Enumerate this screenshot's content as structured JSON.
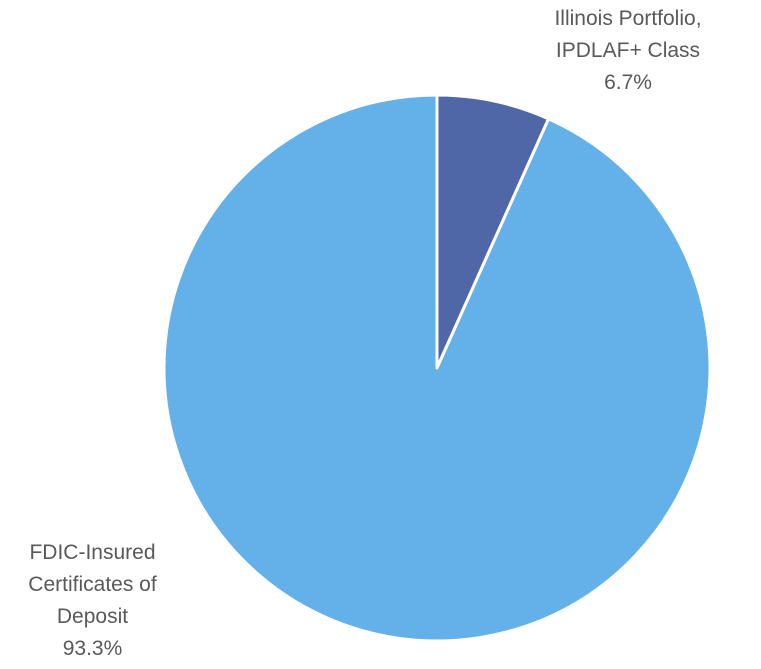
{
  "chart_data": {
    "type": "pie",
    "categories": [
      "Illinois Portfolio, IPDLAF+ Class",
      "FDIC-Insured Certificates of Deposit"
    ],
    "values": [
      6.7,
      93.3
    ],
    "value_labels": [
      "6.7%",
      "93.3%"
    ],
    "colors": [
      "#4f67a6",
      "#64b0e8"
    ]
  }
}
